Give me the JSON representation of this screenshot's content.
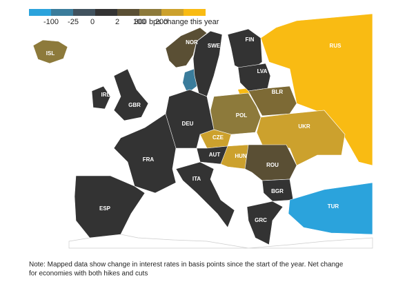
{
  "legend": {
    "colors": [
      "#2ba3dc",
      "#3a7c9b",
      "#41525e",
      "#333333",
      "#5a4f34",
      "#8d7a3b",
      "#cca12d",
      "#f9bb13"
    ],
    "labels": [
      "-100",
      "-25",
      "0",
      "2",
      "100",
      "200",
      "300 bps change this year"
    ]
  },
  "countries": [
    {
      "label": "ISL",
      "color": "#8d7a3b"
    },
    {
      "label": "NOR",
      "color": "#5a4f34"
    },
    {
      "label": "SWE",
      "color": "#333333"
    },
    {
      "label": "FIN",
      "color": "#333333"
    },
    {
      "label": "RUS",
      "color": "#f9bb13"
    },
    {
      "label": "LVA",
      "color": "#333333"
    },
    {
      "label": "IRL",
      "color": "#333333"
    },
    {
      "label": "GBR",
      "color": "#333333"
    },
    {
      "label": "BLR",
      "color": "#7d6a35"
    },
    {
      "label": "POL",
      "color": "#8d7a3b"
    },
    {
      "label": "DEU",
      "color": "#333333"
    },
    {
      "label": "UKR",
      "color": "#cca12d"
    },
    {
      "label": "CZE",
      "color": "#cca12d"
    },
    {
      "label": "FRA",
      "color": "#333333"
    },
    {
      "label": "AUT",
      "color": "#333333"
    },
    {
      "label": "HUN",
      "color": "#cca12d"
    },
    {
      "label": "ROU",
      "color": "#5a4f34"
    },
    {
      "label": "ITA",
      "color": "#333333"
    },
    {
      "label": "BGR",
      "color": "#333333"
    },
    {
      "label": "ESP",
      "color": "#333333"
    },
    {
      "label": "TUR",
      "color": "#2ba3dc"
    },
    {
      "label": "GRC",
      "color": "#333333"
    }
  ],
  "note": [
    "Note: Mapped data show change in interest rates in basis points since the start of the year. Net change",
    "for economies with both hikes and cuts"
  ]
}
